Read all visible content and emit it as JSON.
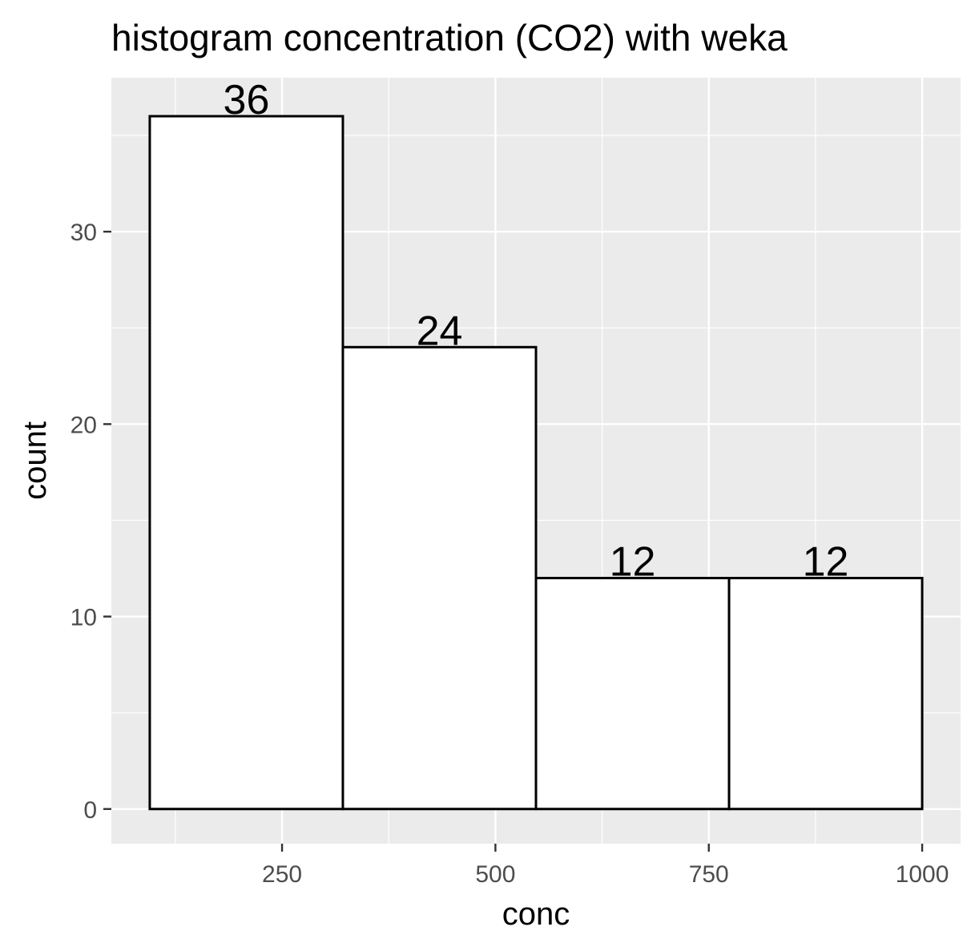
{
  "chart_data": {
    "type": "bar",
    "title": "histogram concentration (CO2) with weka",
    "xlabel": "conc",
    "ylabel": "count",
    "bins": [
      {
        "x0": 95,
        "x1": 321.25,
        "count": 36
      },
      {
        "x0": 321.25,
        "x1": 547.5,
        "count": 24
      },
      {
        "x0": 547.5,
        "x1": 773.75,
        "count": 12
      },
      {
        "x0": 773.75,
        "x1": 1000,
        "count": 12
      }
    ],
    "values": [
      36,
      24,
      12,
      12
    ],
    "data_labels": [
      "36",
      "24",
      "12",
      "12"
    ],
    "xlim": [
      50,
      1045
    ],
    "ylim": [
      -1.8,
      38
    ],
    "x_ticks": [
      250,
      500,
      750,
      1000
    ],
    "x_tick_labels": [
      "250",
      "500",
      "750",
      "1000"
    ],
    "y_ticks": [
      0,
      10,
      20,
      30
    ],
    "y_tick_labels": [
      "0",
      "10",
      "20",
      "30"
    ],
    "grid": true,
    "legend": "none",
    "colors": {
      "panel_background": "#ebebeb",
      "grid_line": "#ffffff",
      "bar_fill": "#ffffff",
      "bar_outline": "#000000",
      "tick_text": "#4d4d4d",
      "tick_mark": "#333333"
    }
  }
}
